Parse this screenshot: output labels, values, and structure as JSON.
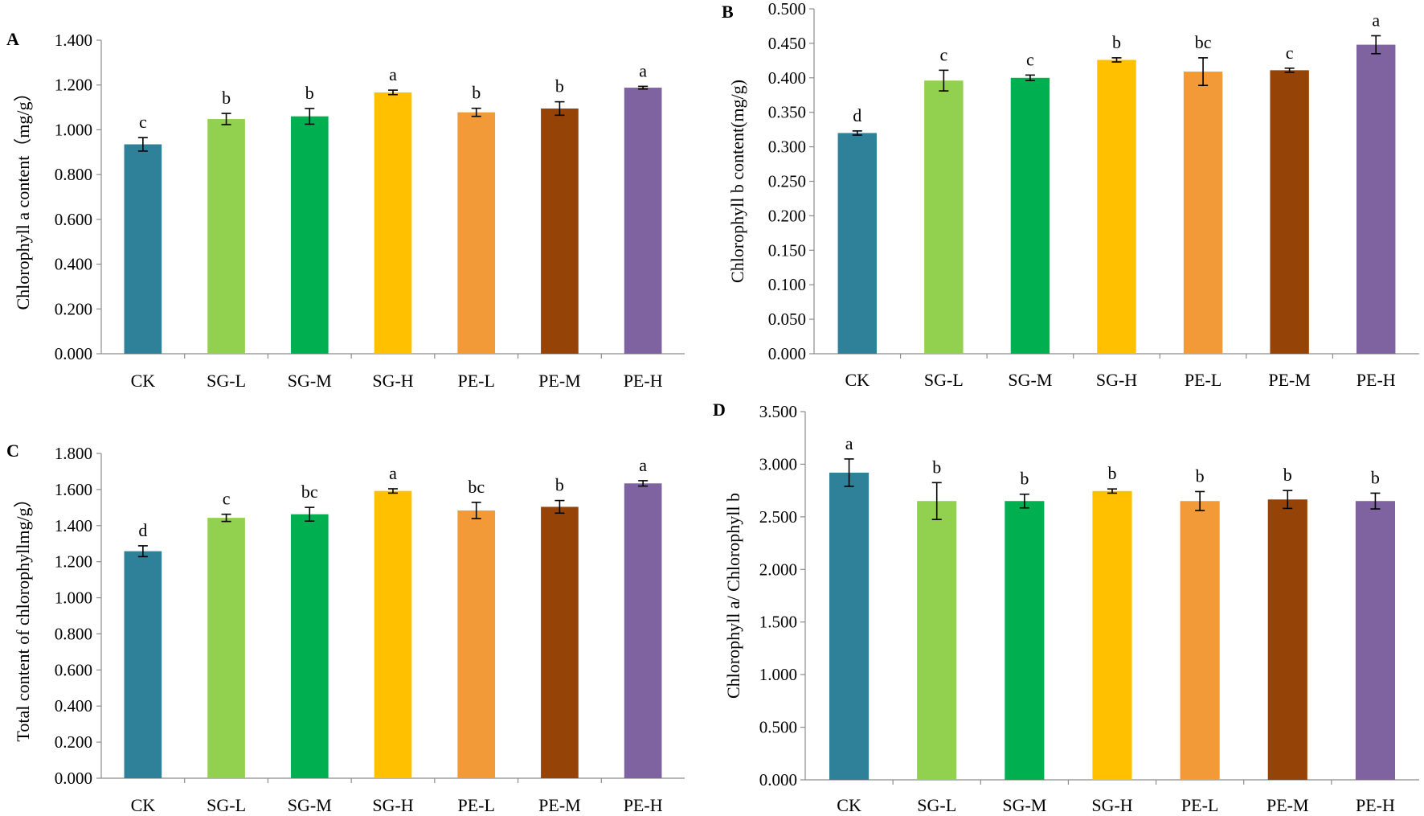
{
  "chart_data": [
    {
      "type": "bar",
      "panel": "A",
      "ylabel": "Chlorophyll a content（mg/g）",
      "ylim": [
        0,
        1.4
      ],
      "ytick_step": 0.2,
      "ytick_labels": [
        "0.000",
        "0.200",
        "0.400",
        "0.600",
        "0.800",
        "1.000",
        "1.200",
        "1.400"
      ],
      "categories": [
        "CK",
        "SG-L",
        "SG-M",
        "SG-H",
        "PE-L",
        "PE-M",
        "PE-H"
      ],
      "values": [
        0.935,
        1.048,
        1.06,
        1.167,
        1.078,
        1.095,
        1.188
      ],
      "errors": [
        0.03,
        0.025,
        0.035,
        0.01,
        0.018,
        0.03,
        0.006
      ],
      "letters": [
        "c",
        "b",
        "b",
        "a",
        "b",
        "b",
        "a"
      ]
    },
    {
      "type": "bar",
      "panel": "B",
      "ylabel": "Chlorophyll b content(mg/g)",
      "ylim": [
        0,
        0.5
      ],
      "ytick_step": 0.05,
      "ytick_labels": [
        "0.000",
        "0.050",
        "0.100",
        "0.150",
        "0.200",
        "0.250",
        "0.300",
        "0.350",
        "0.400",
        "0.450",
        "0.500"
      ],
      "categories": [
        "CK",
        "SG-L",
        "SG-M",
        "SG-H",
        "PE-L",
        "PE-M",
        "PE-H"
      ],
      "values": [
        0.32,
        0.396,
        0.4,
        0.426,
        0.409,
        0.411,
        0.448
      ],
      "errors": [
        0.003,
        0.015,
        0.004,
        0.003,
        0.02,
        0.003,
        0.013
      ],
      "letters": [
        "d",
        "c",
        "c",
        "b",
        "bc",
        "c",
        "a"
      ]
    },
    {
      "type": "bar",
      "panel": "C",
      "ylabel": "Total content of chlorophyllmg/g）",
      "ylim": [
        0,
        1.8
      ],
      "ytick_step": 0.2,
      "ytick_labels": [
        "0.000",
        "0.200",
        "0.400",
        "0.600",
        "0.800",
        "1.000",
        "1.200",
        "1.400",
        "1.600",
        "1.800"
      ],
      "categories": [
        "CK",
        "SG-L",
        "SG-M",
        "SG-H",
        "PE-L",
        "PE-M",
        "PE-H"
      ],
      "values": [
        1.258,
        1.443,
        1.463,
        1.592,
        1.484,
        1.504,
        1.634
      ],
      "errors": [
        0.03,
        0.02,
        0.038,
        0.012,
        0.045,
        0.035,
        0.015
      ],
      "letters": [
        "d",
        "c",
        "bc",
        "a",
        "bc",
        "b",
        "a"
      ]
    },
    {
      "type": "bar",
      "panel": "D",
      "ylabel": "Chlorophyll a/ Chlorophyll b",
      "ylim": [
        0,
        3.5
      ],
      "ytick_step": 0.5,
      "ytick_labels": [
        "0.000",
        "0.500",
        "1.000",
        "1.500",
        "2.000",
        "2.500",
        "3.000",
        "3.500"
      ],
      "categories": [
        "CK",
        "SG-L",
        "SG-M",
        "SG-H",
        "PE-L",
        "PE-M",
        "PE-H"
      ],
      "values": [
        2.92,
        2.65,
        2.65,
        2.745,
        2.65,
        2.665,
        2.65
      ],
      "errors": [
        0.13,
        0.175,
        0.065,
        0.02,
        0.09,
        0.085,
        0.075
      ],
      "letters": [
        "a",
        "b",
        "b",
        "b",
        "b",
        "b",
        "b"
      ]
    }
  ],
  "colors": [
    "#2E8198",
    "#92D050",
    "#00B050",
    "#FFC000",
    "#F39A38",
    "#964307",
    "#7F63A1"
  ]
}
